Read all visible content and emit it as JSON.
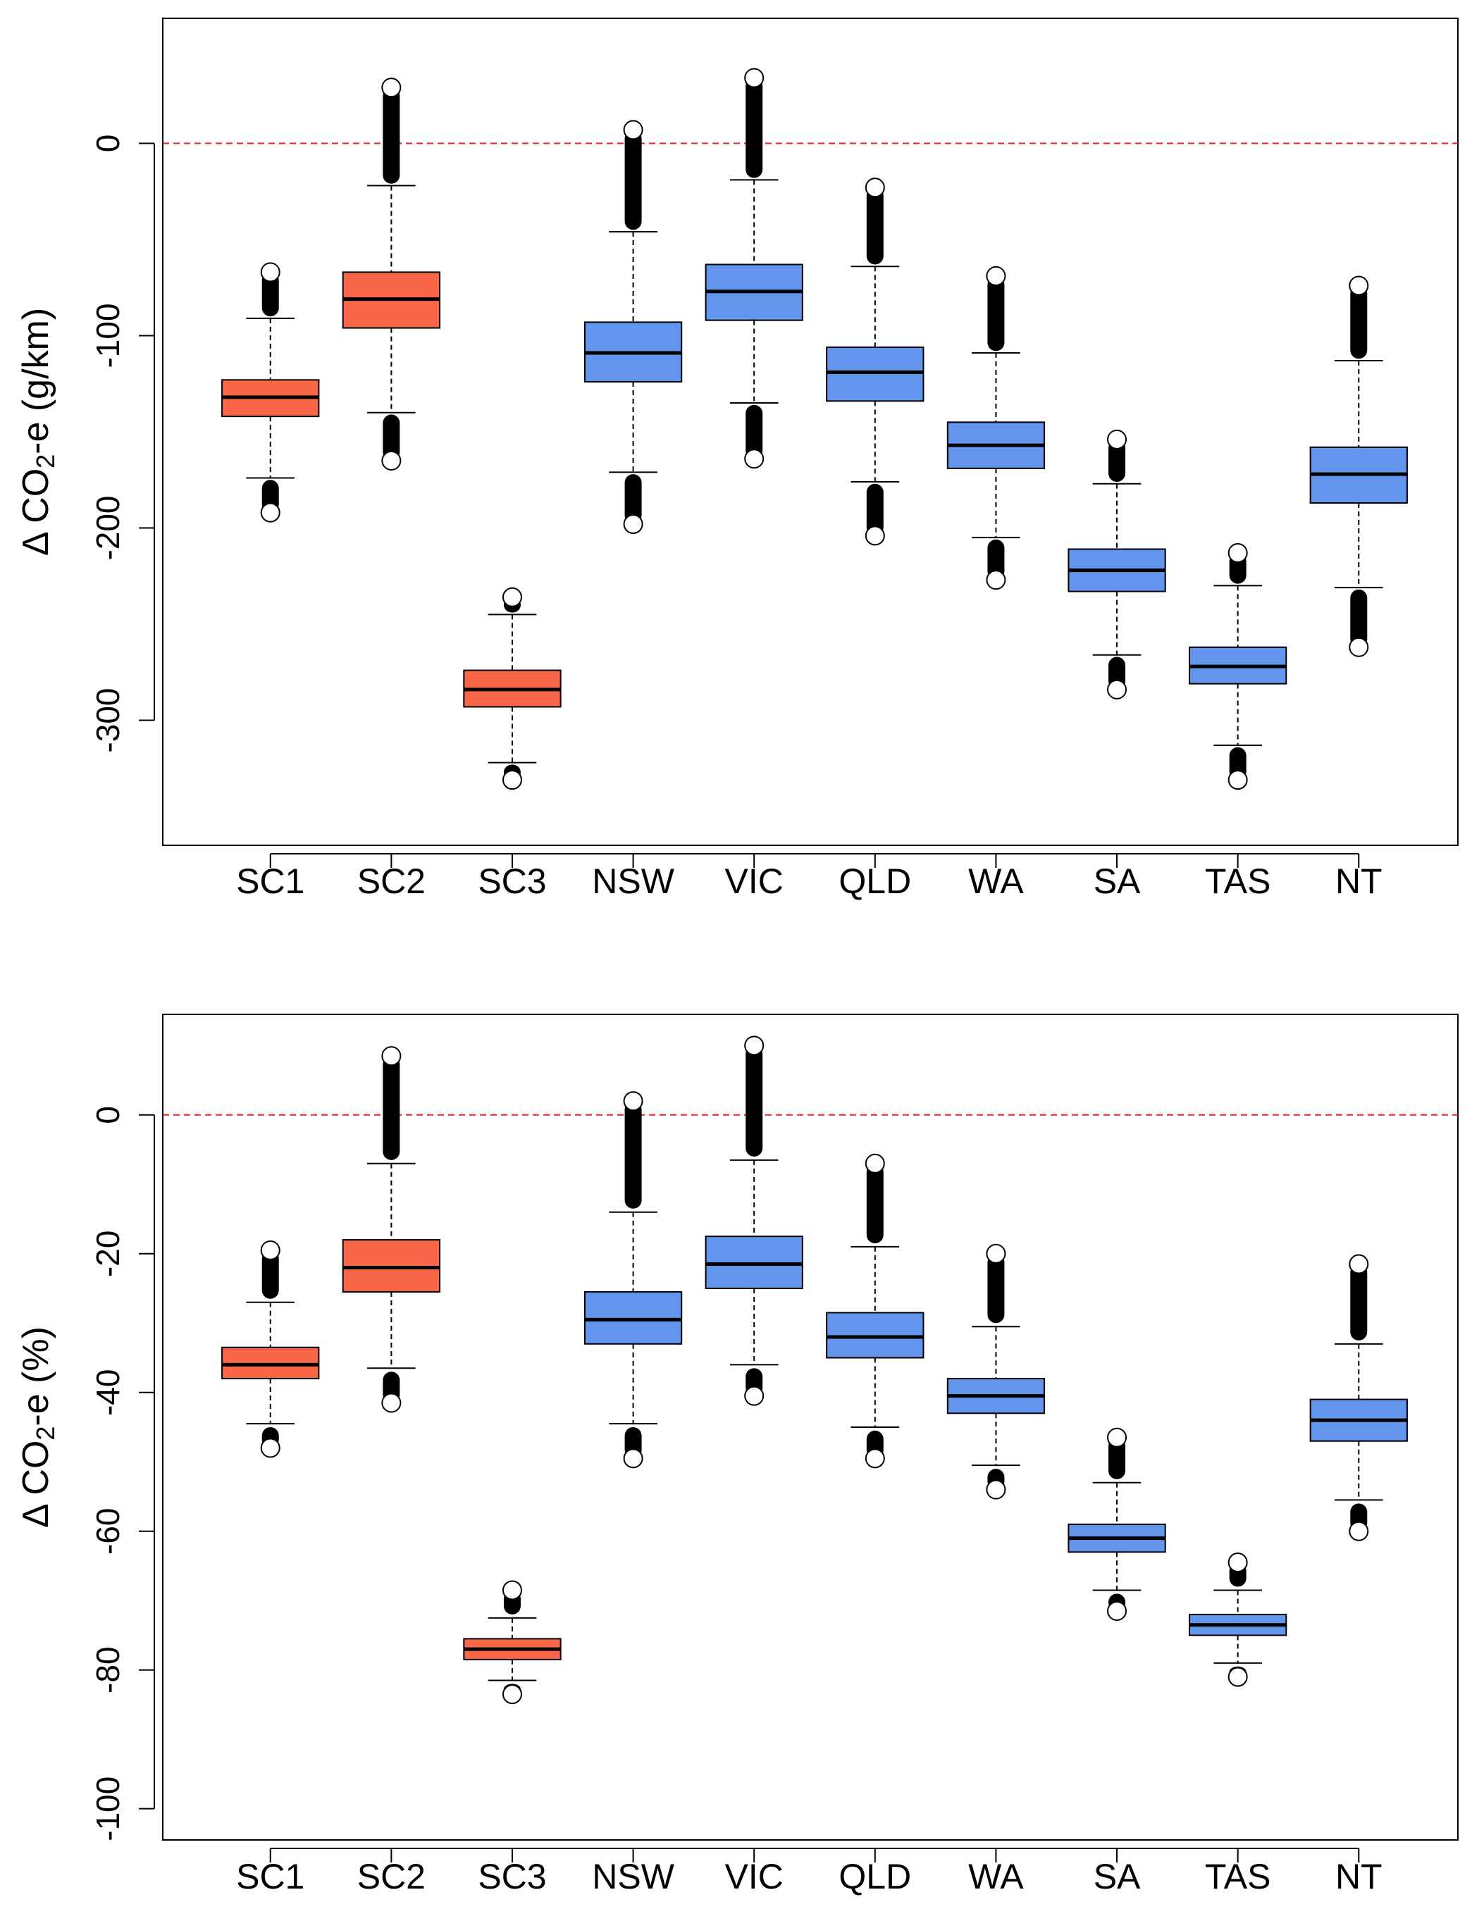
{
  "chart_data": [
    {
      "type": "box",
      "id": "top",
      "ylabel": "Δ CO2-e (g/km)",
      "ylabel_parts": {
        "prefix": "Δ CO",
        "subscript": "2",
        "suffix": "-e (g/km)"
      },
      "ylim": [
        -365,
        65
      ],
      "yticks": [
        0,
        -100,
        -200,
        -300
      ],
      "ytick_labels": [
        "0",
        "-100",
        "-200",
        "-300"
      ],
      "reference_line": {
        "y": 0,
        "color": "#e8202a",
        "style": "dashed"
      },
      "categories": [
        "SC1",
        "SC2",
        "SC3",
        "NSW",
        "VIC",
        "QLD",
        "WA",
        "SA",
        "TAS",
        "NT"
      ],
      "colors": [
        "#fa6748",
        "#fa6748",
        "#fa6748",
        "#6495ed",
        "#6495ed",
        "#6495ed",
        "#6495ed",
        "#6495ed",
        "#6495ed",
        "#6495ed"
      ],
      "boxes": [
        {
          "label": "SC1",
          "q1": -142,
          "median": -132,
          "q3": -123,
          "whisker_low": -174,
          "whisker_high": -91,
          "outliers_low": [
            -175,
            -192
          ],
          "outliers_high": [
            -90,
            -67
          ]
        },
        {
          "label": "SC2",
          "q1": -96,
          "median": -81,
          "q3": -67,
          "whisker_low": -140,
          "whisker_high": -22,
          "outliers_low": [
            -141,
            -165
          ],
          "outliers_high": [
            -21,
            29
          ]
        },
        {
          "label": "SC3",
          "q1": -293,
          "median": -284,
          "q3": -274,
          "whisker_low": -322,
          "whisker_high": -245,
          "outliers_low": [
            -323,
            -331
          ],
          "outliers_high": [
            -244,
            -236
          ]
        },
        {
          "label": "NSW",
          "q1": -124,
          "median": -109,
          "q3": -93,
          "whisker_low": -171,
          "whisker_high": -46,
          "outliers_low": [
            -172,
            -198
          ],
          "outliers_high": [
            -45,
            7
          ]
        },
        {
          "label": "VIC",
          "q1": -92,
          "median": -77,
          "q3": -63,
          "whisker_low": -135,
          "whisker_high": -19,
          "outliers_low": [
            -136,
            -164
          ],
          "outliers_high": [
            -18,
            34
          ]
        },
        {
          "label": "QLD",
          "q1": -134,
          "median": -119,
          "q3": -106,
          "whisker_low": -176,
          "whisker_high": -64,
          "outliers_low": [
            -177,
            -204
          ],
          "outliers_high": [
            -63,
            -23
          ]
        },
        {
          "label": "WA",
          "q1": -169,
          "median": -157,
          "q3": -145,
          "whisker_low": -205,
          "whisker_high": -109,
          "outliers_low": [
            -206,
            -227
          ],
          "outliers_high": [
            -108,
            -69
          ]
        },
        {
          "label": "SA",
          "q1": -233,
          "median": -222,
          "q3": -211,
          "whisker_low": -266,
          "whisker_high": -177,
          "outliers_low": [
            -267,
            -284
          ],
          "outliers_high": [
            -176,
            -154
          ]
        },
        {
          "label": "TAS",
          "q1": -281,
          "median": -272,
          "q3": -262,
          "whisker_low": -313,
          "whisker_high": -230,
          "outliers_low": [
            -314,
            -331
          ],
          "outliers_high": [
            -229,
            -213
          ]
        },
        {
          "label": "NT",
          "q1": -187,
          "median": -172,
          "q3": -158,
          "whisker_low": -231,
          "whisker_high": -113,
          "outliers_low": [
            -232,
            -262
          ],
          "outliers_high": [
            -112,
            -74
          ]
        }
      ]
    },
    {
      "type": "box",
      "id": "bottom",
      "ylabel": "Δ CO2-e (%)",
      "ylabel_parts": {
        "prefix": "Δ CO",
        "subscript": "2",
        "suffix": "-e (%)"
      },
      "ylim": [
        -104.5,
        14.5
      ],
      "yticks": [
        0,
        -20,
        -40,
        -60,
        -80,
        -100
      ],
      "ytick_labels": [
        "0",
        "-20",
        "-40",
        "-60",
        "-80",
        "-100"
      ],
      "reference_line": {
        "y": 0,
        "color": "#e8202a",
        "style": "dashed"
      },
      "categories": [
        "SC1",
        "SC2",
        "SC3",
        "NSW",
        "VIC",
        "QLD",
        "WA",
        "SA",
        "TAS",
        "NT"
      ],
      "colors": [
        "#fa6748",
        "#fa6748",
        "#fa6748",
        "#6495ed",
        "#6495ed",
        "#6495ed",
        "#6495ed",
        "#6495ed",
        "#6495ed",
        "#6495ed"
      ],
      "boxes": [
        {
          "label": "SC1",
          "q1": -38,
          "median": -36,
          "q3": -33.5,
          "whisker_low": -44.5,
          "whisker_high": -27,
          "outliers_low": [
            -45,
            -48
          ],
          "outliers_high": [
            -26.5,
            -19.5
          ]
        },
        {
          "label": "SC2",
          "q1": -25.5,
          "median": -22,
          "q3": -18,
          "whisker_low": -36.5,
          "whisker_high": -7,
          "outliers_low": [
            -37,
            -41.5
          ],
          "outliers_high": [
            -6.5,
            8.5
          ]
        },
        {
          "label": "SC3",
          "q1": -78.5,
          "median": -77,
          "q3": -75.5,
          "whisker_low": -81.5,
          "whisker_high": -72.5,
          "outliers_low": [
            -82,
            -83.5
          ],
          "outliers_high": [
            -72,
            -68.5
          ]
        },
        {
          "label": "NSW",
          "q1": -33,
          "median": -29.5,
          "q3": -25.5,
          "whisker_low": -44.5,
          "whisker_high": -14,
          "outliers_low": [
            -45,
            -49.5
          ],
          "outliers_high": [
            -13.5,
            2
          ]
        },
        {
          "label": "VIC",
          "q1": -25,
          "median": -21.5,
          "q3": -17.5,
          "whisker_low": -36,
          "whisker_high": -6.5,
          "outliers_low": [
            -36.5,
            -40.5
          ],
          "outliers_high": [
            -6,
            10
          ]
        },
        {
          "label": "QLD",
          "q1": -35,
          "median": -32,
          "q3": -28.5,
          "whisker_low": -45,
          "whisker_high": -19,
          "outliers_low": [
            -45.5,
            -49.5
          ],
          "outliers_high": [
            -18.5,
            -7
          ]
        },
        {
          "label": "WA",
          "q1": -43,
          "median": -40.5,
          "q3": -38,
          "whisker_low": -50.5,
          "whisker_high": -30.5,
          "outliers_low": [
            -51,
            -54
          ],
          "outliers_high": [
            -30,
            -20
          ]
        },
        {
          "label": "SA",
          "q1": -63,
          "median": -61,
          "q3": -59,
          "whisker_low": -68.5,
          "whisker_high": -53,
          "outliers_low": [
            -69,
            -71.5
          ],
          "outliers_high": [
            -52.5,
            -46.5
          ]
        },
        {
          "label": "TAS",
          "q1": -75,
          "median": -73.5,
          "q3": -72,
          "whisker_low": -79,
          "whisker_high": -68.5,
          "outliers_low": [
            -79.5,
            -81
          ],
          "outliers_high": [
            -68,
            -64.5
          ]
        },
        {
          "label": "NT",
          "q1": -47,
          "median": -44,
          "q3": -41,
          "whisker_low": -55.5,
          "whisker_high": -33,
          "outliers_low": [
            -56,
            -60
          ],
          "outliers_high": [
            -32.5,
            -21.5
          ]
        }
      ]
    }
  ]
}
